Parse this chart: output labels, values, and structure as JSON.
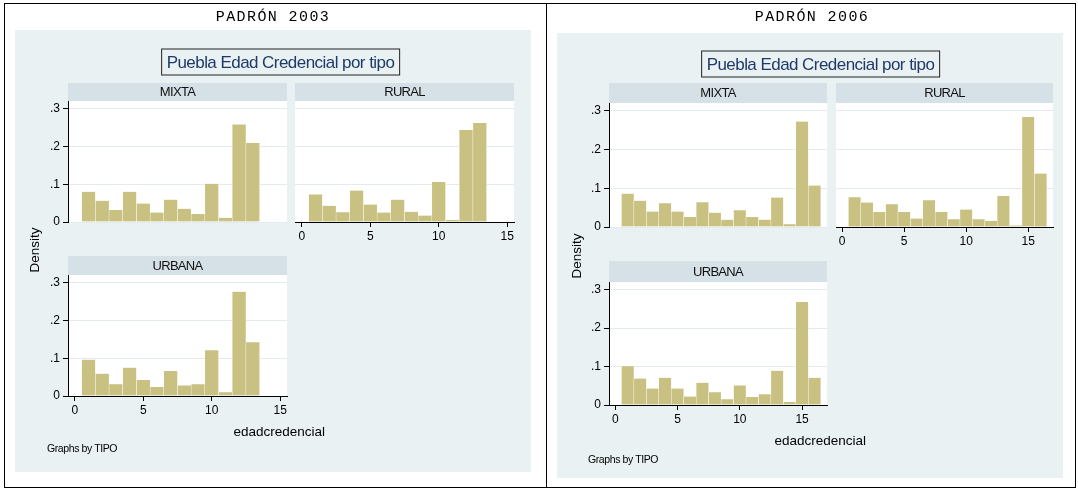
{
  "chart_data": [
    {
      "type": "other",
      "title": "PADRÓN 2003",
      "subtitle": "Puebla Edad Credencial por tipo"
    },
    {
      "type": "histogram",
      "title": "MIXTA",
      "bins": [
        0.5,
        1.5,
        2.5,
        3.5,
        4.5,
        5.5,
        6.5,
        7.5,
        8.5,
        9.5,
        10.5,
        11.5,
        12.5,
        13.5
      ],
      "values": [
        0.08,
        0.056,
        0.032,
        0.08,
        0.049,
        0.025,
        0.059,
        0.035,
        0.021,
        0.101,
        0.011,
        0.258,
        0.209
      ],
      "color": "#c9c181",
      "xlim": [
        -0.5,
        15.5
      ],
      "ylim": [
        0,
        0.32
      ],
      "yticks": [
        0,
        {
          "value": 0.1,
          "label": ".1"
        },
        {
          "value": 0.2,
          "label": ".2"
        },
        {
          "value": 0.3,
          "label": ".3"
        }
      ],
      "grid": "y",
      "tick_labels": "y"
    },
    {
      "type": "histogram",
      "title": "RURAL",
      "bins": [
        0.5,
        1.5,
        2.5,
        3.5,
        4.5,
        5.5,
        6.5,
        7.5,
        8.5,
        9.5,
        10.5,
        11.5,
        12.5,
        13.5
      ],
      "values": [
        0.073,
        0.043,
        0.026,
        0.083,
        0.046,
        0.025,
        0.059,
        0.027,
        0.017,
        0.106,
        0.005,
        0.243,
        0.262
      ],
      "color": "#c9c181",
      "xlim": [
        -0.5,
        15.5
      ],
      "ylim": [
        0,
        0.32
      ],
      "xticks": [
        0,
        5,
        10,
        15
      ],
      "yticks": [
        0,
        0.1,
        0.2,
        0.3
      ],
      "grid": "y",
      "tick_labels": "x"
    },
    {
      "type": "histogram",
      "title": "URBANA",
      "xlabel": "edadcredencial",
      "ylabel": "Density",
      "annotations": [
        "Graphs by TIPO"
      ],
      "bins": [
        0.5,
        1.5,
        2.5,
        3.5,
        4.5,
        5.5,
        6.5,
        7.5,
        8.5,
        9.5,
        10.5,
        11.5,
        12.5,
        13.5
      ],
      "values": [
        0.096,
        0.059,
        0.031,
        0.075,
        0.042,
        0.024,
        0.066,
        0.028,
        0.031,
        0.121,
        0.01,
        0.276,
        0.142
      ],
      "color": "#c9c181",
      "xlim": [
        -0.5,
        15.5
      ],
      "ylim": [
        0,
        0.32
      ],
      "xticks": [
        0,
        5,
        10,
        15
      ],
      "yticks": [
        0,
        {
          "value": 0.1,
          "label": ".1"
        },
        {
          "value": 0.2,
          "label": ".2"
        },
        {
          "value": 0.3,
          "label": ".3"
        }
      ],
      "grid": "y"
    },
    {
      "type": "other",
      "title": "PADRÓN 2006",
      "subtitle": "Puebla Edad Credencial por tipo"
    },
    {
      "type": "histogram",
      "title": "MIXTA",
      "bins": [
        0.5,
        1.5,
        2.5,
        3.5,
        4.5,
        5.5,
        6.5,
        7.5,
        8.5,
        9.5,
        10.5,
        11.5,
        12.5,
        13.5,
        14.5,
        15.5,
        16.5
      ],
      "values": [
        0.086,
        0.068,
        0.04,
        0.061,
        0.04,
        0.026,
        0.064,
        0.037,
        0.019,
        0.043,
        0.026,
        0.019,
        0.076,
        0.007,
        0.272,
        0.107
      ],
      "color": "#c9c181",
      "xlim": [
        -0.5,
        17
      ],
      "ylim": [
        0,
        0.32
      ],
      "yticks": [
        0,
        {
          "value": 0.1,
          "label": ".1"
        },
        {
          "value": 0.2,
          "label": ".2"
        },
        {
          "value": 0.3,
          "label": ".3"
        }
      ],
      "grid": "y",
      "tick_labels": "y"
    },
    {
      "type": "histogram",
      "title": "RURAL",
      "bins": [
        0.5,
        1.5,
        2.5,
        3.5,
        4.5,
        5.5,
        6.5,
        7.5,
        8.5,
        9.5,
        10.5,
        11.5,
        12.5,
        13.5,
        14.5,
        15.5,
        16.5
      ],
      "values": [
        0.077,
        0.063,
        0.039,
        0.059,
        0.039,
        0.022,
        0.069,
        0.039,
        0.02,
        0.045,
        0.02,
        0.016,
        0.08,
        0.004,
        0.284,
        0.138
      ],
      "color": "#c9c181",
      "xlim": [
        -0.5,
        17
      ],
      "ylim": [
        0,
        0.32
      ],
      "xticks": [
        0,
        5,
        10,
        15
      ],
      "yticks": [
        0,
        0.1,
        0.2,
        0.3
      ],
      "grid": "y",
      "tick_labels": "x"
    },
    {
      "type": "histogram",
      "title": "URBANA",
      "xlabel": "edadcredencial",
      "ylabel": "Density",
      "annotations": [
        "Graphs by TIPO"
      ],
      "bins": [
        0.5,
        1.5,
        2.5,
        3.5,
        4.5,
        5.5,
        6.5,
        7.5,
        8.5,
        9.5,
        10.5,
        11.5,
        12.5,
        13.5,
        14.5,
        15.5,
        16.5
      ],
      "values": [
        0.101,
        0.069,
        0.043,
        0.071,
        0.043,
        0.022,
        0.058,
        0.033,
        0.015,
        0.051,
        0.021,
        0.028,
        0.089,
        0.008,
        0.268,
        0.071
      ],
      "color": "#c9c181",
      "xlim": [
        -0.5,
        17
      ],
      "ylim": [
        0,
        0.32
      ],
      "xticks": [
        0,
        5,
        10,
        15
      ],
      "yticks": [
        0,
        {
          "value": 0.1,
          "label": ".1"
        },
        {
          "value": 0.2,
          "label": ".2"
        },
        {
          "value": 0.3,
          "label": ".3"
        }
      ],
      "grid": "y"
    }
  ]
}
